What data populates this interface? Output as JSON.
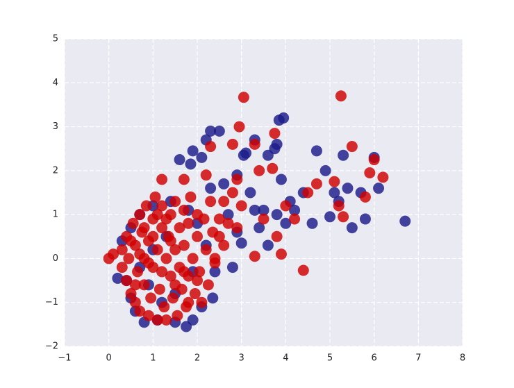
{
  "chart_data": {
    "type": "scatter",
    "xlim": [
      -1,
      8
    ],
    "ylim": [
      -2,
      5
    ],
    "xticks": [
      {
        "value": -1,
        "label": "−1"
      },
      0,
      1,
      2,
      3,
      4,
      5,
      6,
      7,
      8
    ],
    "yticks": [
      {
        "value": -2,
        "label": "−2"
      },
      {
        "value": -1,
        "label": "−1"
      },
      0,
      1,
      2,
      3,
      4,
      5
    ],
    "grid": true,
    "series": [
      {
        "color": "#1c1c8a",
        "x": [
          6.7,
          6.0,
          6.1,
          5.8,
          5.5,
          5.3,
          4.9,
          4.7,
          5.1,
          5.0,
          4.6,
          3.95,
          3.85,
          3.8,
          3.75,
          3.6,
          3.1,
          3.05,
          3.3,
          2.5,
          2.3,
          2.2,
          1.9,
          1.85,
          1.6,
          2.1,
          2.3,
          2.6,
          2.9,
          3.2,
          3.5,
          3.8,
          4.2,
          4.1,
          3.9,
          3.4,
          3.0,
          2.8,
          2.4,
          2.35,
          2.1,
          1.9,
          1.75,
          1.5,
          1.1,
          0.8,
          0.6,
          0.5,
          0.4,
          0.2,
          0.3,
          0.5,
          0.7,
          1.0,
          1.4,
          1.8,
          2.0,
          2.2,
          1.9,
          1.5,
          1.2,
          0.9,
          0.7,
          1.0,
          1.3,
          2.7,
          3.3,
          5.7,
          5.4,
          5.2,
          4.4,
          4.0,
          3.6,
          2.9
        ],
        "values": [
          0.85,
          2.3,
          1.6,
          0.9,
          0.7,
          2.35,
          2.0,
          2.45,
          1.5,
          0.95,
          0.8,
          3.2,
          3.15,
          2.6,
          2.5,
          2.35,
          2.4,
          2.35,
          2.7,
          2.9,
          2.9,
          2.7,
          2.45,
          2.15,
          2.25,
          2.3,
          1.6,
          1.7,
          1.9,
          1.5,
          1.1,
          1.0,
          1.1,
          1.3,
          1.8,
          0.7,
          0.35,
          -0.2,
          -0.3,
          -0.9,
          -1.1,
          -1.4,
          -1.55,
          -1.45,
          -1.4,
          -1.45,
          -1.2,
          -0.9,
          -0.5,
          -0.45,
          0.4,
          0.7,
          1.0,
          1.2,
          1.3,
          1.1,
          0.8,
          0.3,
          -0.3,
          -0.8,
          -1.0,
          -0.6,
          -0.2,
          0.2,
          0.5,
          1.0,
          1.1,
          1.5,
          1.6,
          1.3,
          1.5,
          0.8,
          0.3,
          0.6
        ]
      },
      {
        "color": "#d10000",
        "x": [
          5.25,
          3.05,
          2.95,
          3.75,
          3.3,
          2.8,
          2.3,
          5.5,
          6.0,
          6.2,
          5.9,
          4.4,
          3.9,
          3.3,
          4.7,
          5.1,
          4.5,
          4.0,
          3.5,
          3.0,
          2.6,
          2.2,
          1.7,
          1.2,
          3.7,
          3.4,
          2.9,
          4.2,
          3.8,
          5.3,
          5.8,
          5.2,
          2.5,
          2.4,
          2.0,
          1.8,
          0.0,
          0.1,
          0.3,
          0.3,
          0.4,
          0.4,
          0.45,
          0.5,
          0.55,
          0.6,
          0.6,
          0.65,
          0.7,
          0.7,
          0.75,
          0.8,
          0.8,
          0.85,
          0.9,
          0.9,
          0.95,
          1.0,
          1.0,
          1.05,
          1.1,
          1.1,
          1.15,
          1.2,
          1.2,
          1.25,
          1.3,
          1.3,
          1.35,
          1.4,
          1.4,
          1.45,
          1.5,
          1.5,
          1.55,
          1.6,
          1.6,
          1.65,
          1.7,
          1.7,
          1.75,
          1.8,
          1.8,
          1.85,
          1.9,
          1.95,
          2.0,
          2.0,
          2.05,
          2.1,
          2.15,
          2.2,
          2.25,
          2.3,
          2.35,
          2.4,
          2.5,
          2.6,
          2.7,
          2.8,
          2.9,
          1.0,
          0.9,
          1.2,
          0.7,
          1.5,
          1.3,
          0.6,
          1.1,
          1.7,
          0.5,
          1.4,
          0.8
        ],
        "values": [
          3.7,
          3.67,
          3.0,
          2.85,
          2.6,
          2.6,
          2.55,
          2.55,
          2.25,
          1.85,
          1.95,
          -0.27,
          0.1,
          0.05,
          1.7,
          1.75,
          1.5,
          1.2,
          0.9,
          1.2,
          1.3,
          1.9,
          1.8,
          1.8,
          2.05,
          2.0,
          1.8,
          0.9,
          0.5,
          0.95,
          1.4,
          1.2,
          0.5,
          0.0,
          -0.5,
          -1.0,
          0.0,
          0.1,
          0.2,
          -0.2,
          0.5,
          -0.5,
          0.0,
          -0.8,
          0.8,
          -1.0,
          0.3,
          -0.3,
          1.0,
          -1.2,
          0.6,
          -0.6,
          0.0,
          1.2,
          -1.3,
          0.4,
          -0.9,
          0.9,
          -0.2,
          1.4,
          -1.4,
          0.2,
          -0.7,
          0.7,
          1.2,
          -1.1,
          0.0,
          -1.4,
          0.5,
          1.0,
          -0.4,
          -0.9,
          1.3,
          0.2,
          -1.3,
          0.7,
          -0.2,
          -0.7,
          1.1,
          0.3,
          -1.1,
          -0.4,
          0.8,
          1.4,
          0.0,
          -0.8,
          0.5,
          1.0,
          -0.3,
          -1.0,
          0.9,
          0.2,
          -0.6,
          1.3,
          0.6,
          -0.1,
          0.9,
          0.3,
          0.8,
          1.5,
          0.7,
          0.5,
          -0.1,
          -0.3,
          0.1,
          -0.6,
          0.9,
          -0.6,
          1.0,
          -0.3,
          0.4,
          0.4,
          0.7
        ]
      }
    ]
  }
}
